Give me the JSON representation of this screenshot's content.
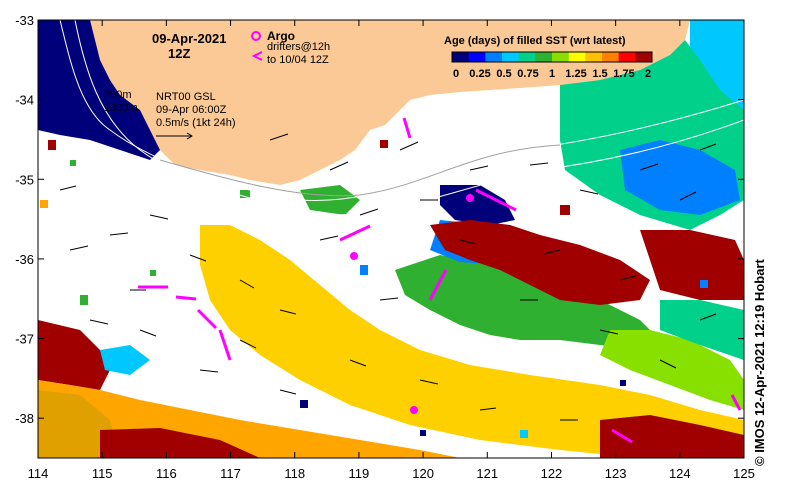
{
  "map": {
    "date_title": "09-Apr-2021",
    "time_title": "12Z",
    "argo_label": "Argo",
    "drifters_label": "drifters@12h",
    "drifters_to_label": "to 10/04 12Z",
    "isobath_200": "200m",
    "isobath_1000": "1000m",
    "current_source": "NRT00 GSL",
    "current_time": "09-Apr 06:00Z",
    "current_scale": "0.5m/s (1kt 24h)",
    "credit": "© IMOS 12-Apr-2021 12:19 Hobart",
    "colorbar": {
      "title": "Age (days) of filled SST (wrt latest)",
      "ticks": [
        "0",
        "0.25",
        "0.5",
        "0.75",
        "1",
        "1.25",
        "1.5",
        "1.75",
        "2"
      ],
      "colors": [
        "#00007a",
        "#0000ff",
        "#0080ff",
        "#00c8ff",
        "#00d08a",
        "#30b030",
        "#88e000",
        "#ffff00",
        "#ffc000",
        "#ff8000",
        "#ff0000",
        "#a00000"
      ]
    },
    "x_axis": {
      "ticks": [
        "114",
        "115",
        "116",
        "117",
        "118",
        "119",
        "120",
        "121",
        "122",
        "123",
        "124",
        "125"
      ],
      "range": [
        114,
        125
      ]
    },
    "y_axis": {
      "ticks": [
        "-33",
        "-34",
        "-35",
        "-36",
        "-37",
        "-38"
      ],
      "range": [
        -38.5,
        -33
      ]
    },
    "colors": {
      "land": "#fbc995",
      "ocean_fill": "#ffffff",
      "argo": "#ff00ff",
      "drifter": "#ff00ff"
    }
  }
}
